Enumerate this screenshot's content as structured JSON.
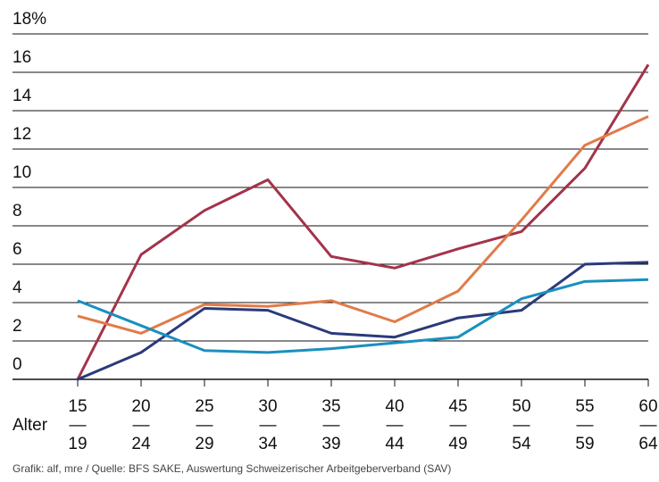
{
  "chart_data": {
    "type": "line",
    "x_label": "Alter",
    "source": "Grafik: alf, mre / Quelle: BFS SAKE, Auswertung Schweizerischer Arbeitgeberverband (SAV)",
    "categories": [
      [
        "15",
        "—",
        "19"
      ],
      [
        "20",
        "—",
        "24"
      ],
      [
        "25",
        "—",
        "29"
      ],
      [
        "30",
        "—",
        "34"
      ],
      [
        "35",
        "—",
        "39"
      ],
      [
        "40",
        "—",
        "44"
      ],
      [
        "45",
        "—",
        "49"
      ],
      [
        "50",
        "—",
        "54"
      ],
      [
        "55",
        "—",
        "59"
      ],
      [
        "60",
        "—",
        "64"
      ]
    ],
    "ylim": [
      0,
      18
    ],
    "yticks": [
      0,
      2,
      4,
      6,
      8,
      10,
      12,
      14,
      16,
      {
        "value": 18,
        "label": "18%"
      }
    ],
    "grid": true,
    "series": [
      {
        "color": "#a3334a",
        "values": [
          0,
          6.5,
          8.8,
          10.4,
          6.4,
          5.8,
          6.8,
          7.7,
          11.0,
          16.4
        ]
      },
      {
        "color": "#e07b4a",
        "values": [
          3.3,
          2.4,
          3.9,
          3.8,
          4.1,
          3.0,
          4.6,
          8.3,
          12.2,
          13.7
        ]
      },
      {
        "color": "#2a3a7a",
        "values": [
          0,
          1.4,
          3.7,
          3.6,
          2.4,
          2.2,
          3.2,
          3.6,
          6.0,
          6.1
        ]
      },
      {
        "color": "#1a8fc0",
        "values": [
          4.1,
          2.8,
          1.5,
          1.4,
          1.6,
          1.9,
          2.2,
          4.2,
          5.1,
          5.2
        ]
      }
    ]
  }
}
